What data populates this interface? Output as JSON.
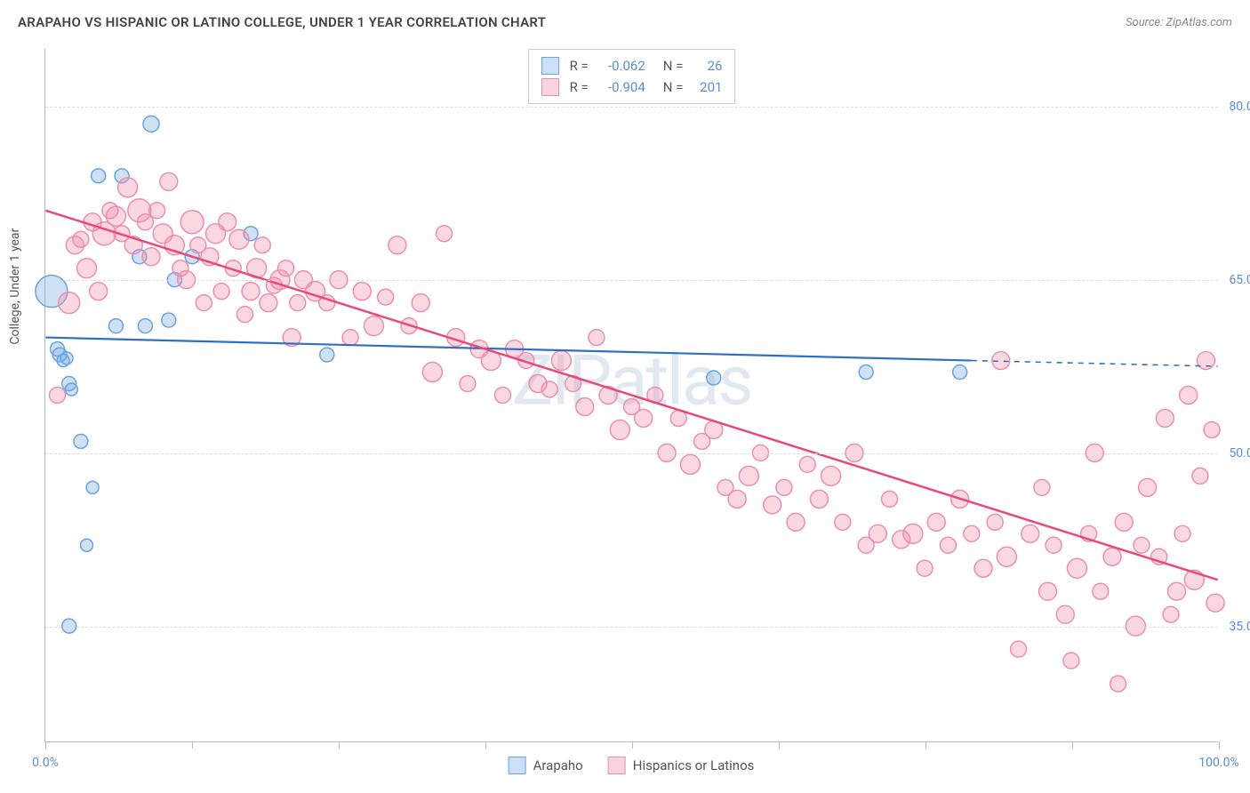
{
  "title": "ARAPAHO VS HISPANIC OR LATINO COLLEGE, UNDER 1 YEAR CORRELATION CHART",
  "source": "Source: ZipAtlas.com",
  "watermark": "ZIPatlas",
  "y_axis_title": "College, Under 1 year",
  "chart": {
    "type": "scatter",
    "xlim": [
      0,
      100
    ],
    "ylim": [
      25,
      85
    ],
    "x_ticks": [
      0,
      12.5,
      25,
      37.5,
      50,
      62.5,
      75,
      87.5,
      100
    ],
    "x_labels": {
      "0": "0.0%",
      "100": "100.0%"
    },
    "y_grid": [
      35,
      50,
      65,
      80
    ],
    "y_labels": {
      "35": "35.0%",
      "50": "50.0%",
      "65": "65.0%",
      "80": "80.0%"
    },
    "background_color": "#ffffff",
    "grid_color": "#dddddd",
    "axis_color": "#bbbbbb",
    "tick_label_color": "#5b8dd6",
    "series": [
      {
        "name": "Arapaho",
        "color_fill": "rgba(120, 170, 230, 0.35)",
        "color_stroke": "#6aa3e0",
        "line_color": "#2f6fc4",
        "line_width": 2.2,
        "trend": {
          "x1": 0,
          "y1": 60,
          "x2": 79,
          "y2": 58,
          "dash_x2": 100,
          "dash_y2": 57.5
        },
        "R": "-0.062",
        "N": "26",
        "points": [
          {
            "x": 0.5,
            "y": 64,
            "r": 18
          },
          {
            "x": 1.0,
            "y": 59,
            "r": 8
          },
          {
            "x": 1.2,
            "y": 58.5,
            "r": 8
          },
          {
            "x": 1.5,
            "y": 58,
            "r": 7
          },
          {
            "x": 1.8,
            "y": 58.2,
            "r": 7
          },
          {
            "x": 2.0,
            "y": 56,
            "r": 8
          },
          {
            "x": 2.2,
            "y": 55.5,
            "r": 7
          },
          {
            "x": 2.0,
            "y": 35,
            "r": 8
          },
          {
            "x": 3.0,
            "y": 51,
            "r": 8
          },
          {
            "x": 3.5,
            "y": 42,
            "r": 7
          },
          {
            "x": 4.0,
            "y": 47,
            "r": 7
          },
          {
            "x": 4.5,
            "y": 74,
            "r": 8
          },
          {
            "x": 6.0,
            "y": 61,
            "r": 8
          },
          {
            "x": 6.5,
            "y": 74,
            "r": 8
          },
          {
            "x": 8.0,
            "y": 67,
            "r": 8
          },
          {
            "x": 8.5,
            "y": 61,
            "r": 8
          },
          {
            "x": 9.0,
            "y": 78.5,
            "r": 9
          },
          {
            "x": 10.5,
            "y": 61.5,
            "r": 8
          },
          {
            "x": 11.0,
            "y": 65,
            "r": 8
          },
          {
            "x": 12.5,
            "y": 67,
            "r": 8
          },
          {
            "x": 17.5,
            "y": 69,
            "r": 8
          },
          {
            "x": 24.0,
            "y": 58.5,
            "r": 8
          },
          {
            "x": 57.0,
            "y": 56.5,
            "r": 8
          },
          {
            "x": 70.0,
            "y": 57,
            "r": 8
          },
          {
            "x": 78.0,
            "y": 57,
            "r": 8
          }
        ]
      },
      {
        "name": "Hispanics or Latinos",
        "color_fill": "rgba(240, 140, 170, 0.35)",
        "color_stroke": "#ec8fae",
        "line_color": "#e84a7a",
        "line_width": 2.5,
        "trend": {
          "x1": 0,
          "y1": 71,
          "x2": 100,
          "y2": 39
        },
        "R": "-0.904",
        "N": "201",
        "points": [
          {
            "x": 1,
            "y": 55,
            "r": 9
          },
          {
            "x": 2,
            "y": 63,
            "r": 12
          },
          {
            "x": 2.5,
            "y": 68,
            "r": 10
          },
          {
            "x": 3,
            "y": 68.5,
            "r": 9
          },
          {
            "x": 3.5,
            "y": 66,
            "r": 11
          },
          {
            "x": 4,
            "y": 70,
            "r": 10
          },
          {
            "x": 4.5,
            "y": 64,
            "r": 10
          },
          {
            "x": 5,
            "y": 69,
            "r": 13
          },
          {
            "x": 5.5,
            "y": 71,
            "r": 9
          },
          {
            "x": 6,
            "y": 70.5,
            "r": 11
          },
          {
            "x": 6.5,
            "y": 69,
            "r": 9
          },
          {
            "x": 7,
            "y": 73,
            "r": 11
          },
          {
            "x": 7.5,
            "y": 68,
            "r": 10
          },
          {
            "x": 8,
            "y": 71,
            "r": 13
          },
          {
            "x": 8.5,
            "y": 70,
            "r": 9
          },
          {
            "x": 9,
            "y": 67,
            "r": 10
          },
          {
            "x": 9.5,
            "y": 71,
            "r": 9
          },
          {
            "x": 10,
            "y": 69,
            "r": 11
          },
          {
            "x": 10.5,
            "y": 73.5,
            "r": 10
          },
          {
            "x": 11,
            "y": 68,
            "r": 11
          },
          {
            "x": 11.5,
            "y": 66,
            "r": 9
          },
          {
            "x": 12,
            "y": 65,
            "r": 10
          },
          {
            "x": 12.5,
            "y": 70,
            "r": 13
          },
          {
            "x": 13,
            "y": 68,
            "r": 9
          },
          {
            "x": 13.5,
            "y": 63,
            "r": 9
          },
          {
            "x": 14,
            "y": 67,
            "r": 10
          },
          {
            "x": 14.5,
            "y": 69,
            "r": 11
          },
          {
            "x": 15,
            "y": 64,
            "r": 9
          },
          {
            "x": 15.5,
            "y": 70,
            "r": 10
          },
          {
            "x": 16,
            "y": 66,
            "r": 9
          },
          {
            "x": 16.5,
            "y": 68.5,
            "r": 11
          },
          {
            "x": 17,
            "y": 62,
            "r": 9
          },
          {
            "x": 17.5,
            "y": 64,
            "r": 10
          },
          {
            "x": 18,
            "y": 66,
            "r": 11
          },
          {
            "x": 18.5,
            "y": 68,
            "r": 9
          },
          {
            "x": 19,
            "y": 63,
            "r": 10
          },
          {
            "x": 19.5,
            "y": 64.5,
            "r": 9
          },
          {
            "x": 20,
            "y": 65,
            "r": 11
          },
          {
            "x": 20.5,
            "y": 66,
            "r": 9
          },
          {
            "x": 21,
            "y": 60,
            "r": 10
          },
          {
            "x": 21.5,
            "y": 63,
            "r": 9
          },
          {
            "x": 22,
            "y": 65,
            "r": 10
          },
          {
            "x": 23,
            "y": 64,
            "r": 11
          },
          {
            "x": 24,
            "y": 63,
            "r": 9
          },
          {
            "x": 25,
            "y": 65,
            "r": 10
          },
          {
            "x": 26,
            "y": 60,
            "r": 9
          },
          {
            "x": 27,
            "y": 64,
            "r": 10
          },
          {
            "x": 28,
            "y": 61,
            "r": 11
          },
          {
            "x": 29,
            "y": 63.5,
            "r": 9
          },
          {
            "x": 30,
            "y": 68,
            "r": 10
          },
          {
            "x": 31,
            "y": 61,
            "r": 9
          },
          {
            "x": 32,
            "y": 63,
            "r": 10
          },
          {
            "x": 33,
            "y": 57,
            "r": 11
          },
          {
            "x": 34,
            "y": 69,
            "r": 9
          },
          {
            "x": 35,
            "y": 60,
            "r": 10
          },
          {
            "x": 36,
            "y": 56,
            "r": 9
          },
          {
            "x": 37,
            "y": 59,
            "r": 10
          },
          {
            "x": 38,
            "y": 58,
            "r": 11
          },
          {
            "x": 39,
            "y": 55,
            "r": 9
          },
          {
            "x": 40,
            "y": 59,
            "r": 10
          },
          {
            "x": 41,
            "y": 58,
            "r": 9
          },
          {
            "x": 42,
            "y": 56,
            "r": 10
          },
          {
            "x": 43,
            "y": 55.5,
            "r": 9
          },
          {
            "x": 44,
            "y": 58,
            "r": 11
          },
          {
            "x": 45,
            "y": 56,
            "r": 9
          },
          {
            "x": 46,
            "y": 54,
            "r": 10
          },
          {
            "x": 47,
            "y": 60,
            "r": 9
          },
          {
            "x": 48,
            "y": 55,
            "r": 10
          },
          {
            "x": 49,
            "y": 52,
            "r": 11
          },
          {
            "x": 50,
            "y": 54,
            "r": 9
          },
          {
            "x": 51,
            "y": 53,
            "r": 10
          },
          {
            "x": 52,
            "y": 55,
            "r": 9
          },
          {
            "x": 53,
            "y": 50,
            "r": 10
          },
          {
            "x": 54,
            "y": 53,
            "r": 9
          },
          {
            "x": 55,
            "y": 49,
            "r": 11
          },
          {
            "x": 56,
            "y": 51,
            "r": 9
          },
          {
            "x": 57,
            "y": 52,
            "r": 10
          },
          {
            "x": 58,
            "y": 47,
            "r": 9
          },
          {
            "x": 59,
            "y": 46,
            "r": 10
          },
          {
            "x": 60,
            "y": 48,
            "r": 11
          },
          {
            "x": 61,
            "y": 50,
            "r": 9
          },
          {
            "x": 62,
            "y": 45.5,
            "r": 10
          },
          {
            "x": 63,
            "y": 47,
            "r": 9
          },
          {
            "x": 64,
            "y": 44,
            "r": 10
          },
          {
            "x": 65,
            "y": 49,
            "r": 9
          },
          {
            "x": 66,
            "y": 46,
            "r": 10
          },
          {
            "x": 67,
            "y": 48,
            "r": 11
          },
          {
            "x": 68,
            "y": 44,
            "r": 9
          },
          {
            "x": 69,
            "y": 50,
            "r": 10
          },
          {
            "x": 70,
            "y": 42,
            "r": 9
          },
          {
            "x": 71,
            "y": 43,
            "r": 10
          },
          {
            "x": 72,
            "y": 46,
            "r": 9
          },
          {
            "x": 73,
            "y": 42.5,
            "r": 10
          },
          {
            "x": 74,
            "y": 43,
            "r": 11
          },
          {
            "x": 75,
            "y": 40,
            "r": 9
          },
          {
            "x": 76,
            "y": 44,
            "r": 10
          },
          {
            "x": 77,
            "y": 42,
            "r": 9
          },
          {
            "x": 78,
            "y": 46,
            "r": 10
          },
          {
            "x": 79,
            "y": 43,
            "r": 9
          },
          {
            "x": 80,
            "y": 40,
            "r": 10
          },
          {
            "x": 81,
            "y": 44,
            "r": 9
          },
          {
            "x": 81.5,
            "y": 58,
            "r": 10
          },
          {
            "x": 82,
            "y": 41,
            "r": 11
          },
          {
            "x": 83,
            "y": 33,
            "r": 9
          },
          {
            "x": 84,
            "y": 43,
            "r": 10
          },
          {
            "x": 85,
            "y": 47,
            "r": 9
          },
          {
            "x": 85.5,
            "y": 38,
            "r": 10
          },
          {
            "x": 86,
            "y": 42,
            "r": 9
          },
          {
            "x": 87,
            "y": 36,
            "r": 10
          },
          {
            "x": 87.5,
            "y": 32,
            "r": 9
          },
          {
            "x": 88,
            "y": 40,
            "r": 11
          },
          {
            "x": 89,
            "y": 43,
            "r": 9
          },
          {
            "x": 89.5,
            "y": 50,
            "r": 10
          },
          {
            "x": 90,
            "y": 38,
            "r": 9
          },
          {
            "x": 91,
            "y": 41,
            "r": 10
          },
          {
            "x": 91.5,
            "y": 30,
            "r": 9
          },
          {
            "x": 92,
            "y": 44,
            "r": 10
          },
          {
            "x": 93,
            "y": 35,
            "r": 11
          },
          {
            "x": 93.5,
            "y": 42,
            "r": 9
          },
          {
            "x": 94,
            "y": 47,
            "r": 10
          },
          {
            "x": 95,
            "y": 41,
            "r": 9
          },
          {
            "x": 95.5,
            "y": 53,
            "r": 10
          },
          {
            "x": 96,
            "y": 36,
            "r": 9
          },
          {
            "x": 96.5,
            "y": 38,
            "r": 10
          },
          {
            "x": 97,
            "y": 43,
            "r": 9
          },
          {
            "x": 97.5,
            "y": 55,
            "r": 10
          },
          {
            "x": 98,
            "y": 39,
            "r": 11
          },
          {
            "x": 98.5,
            "y": 48,
            "r": 9
          },
          {
            "x": 99,
            "y": 58,
            "r": 10
          },
          {
            "x": 99.5,
            "y": 52,
            "r": 9
          },
          {
            "x": 99.8,
            "y": 37,
            "r": 10
          }
        ]
      }
    ]
  },
  "legend_top": [
    {
      "swatch_fill": "#cbe0f7",
      "swatch_border": "#6aa3e0",
      "R": "-0.062",
      "N": "26"
    },
    {
      "swatch_fill": "#f9d4e0",
      "swatch_border": "#ec8fae",
      "R": "-0.904",
      "N": "201"
    }
  ],
  "legend_bottom": [
    {
      "swatch_fill": "#cbe0f7",
      "swatch_border": "#6aa3e0",
      "label": "Arapaho"
    },
    {
      "swatch_fill": "#f9d4e0",
      "swatch_border": "#ec8fae",
      "label": "Hispanics or Latinos"
    }
  ]
}
